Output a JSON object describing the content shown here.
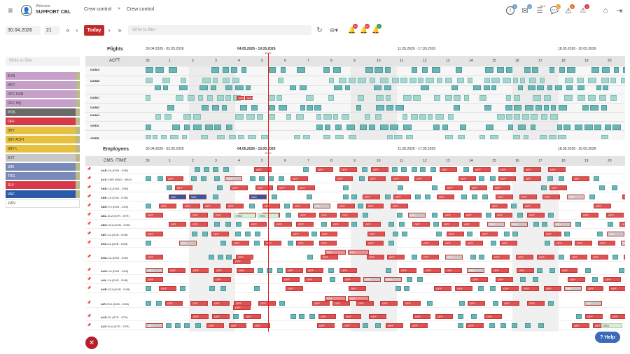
{
  "header": {
    "welcome": "Welcome",
    "user": "SUPPORT CBL",
    "nav": [
      "Crew control",
      ">",
      "Crew control"
    ],
    "badges": [
      "0",
      "0",
      "613",
      "0",
      "4",
      "3"
    ]
  },
  "toolbar": {
    "date": "30.04.2026",
    "days": "21",
    "today_label": "Today",
    "filter_placeholder": "Write to filter",
    "bell_badges": [
      "34",
      "34",
      "0"
    ]
  },
  "left_panel": {
    "filter_placeholder": "Write to filter",
    "items": [
      {
        "label": "EVN",
        "color": "#c6a0c8"
      },
      {
        "label": "HFC",
        "color": "#c6a0c8"
      },
      {
        "label": "OFC DXB",
        "color": "#c6a0c8"
      },
      {
        "label": "OFC HQ",
        "color": "#c6a0c8"
      },
      {
        "label": "POS",
        "color": "#6a6a6a"
      },
      {
        "label": "OFF",
        "color": "#d63a4a"
      },
      {
        "label": "SBY",
        "color": "#e8c040"
      },
      {
        "label": "SBY ACFT",
        "color": "#e8c040"
      },
      {
        "label": "SBY L",
        "color": "#e8c040"
      },
      {
        "label": "EXT",
        "color": "#c8c8c8"
      },
      {
        "label": "SIM",
        "color": "#7a8ab8"
      },
      {
        "label": "TRG",
        "color": "#7a8ab8"
      },
      {
        "label": "SLV",
        "color": "#d63a4a"
      },
      {
        "label": "VAC",
        "color": "#2a5aa8"
      },
      {
        "label": "RSV",
        "color": "#ffffff"
      }
    ]
  },
  "flights": {
    "title": "Flights",
    "col_header": "ACFT",
    "ranges": [
      "30.04.2026 - 03.05.2026",
      "04.05.2026 - 10.05.2026",
      "11.05.2026 - 17.05.2026",
      "18.05.2026 - 20.05.2026"
    ],
    "now_time": "10:37",
    "days": [
      "30",
      "1",
      "2",
      "3",
      "4",
      "5",
      "6",
      "7",
      "8",
      "9",
      "10",
      "11",
      "12",
      "13",
      "14",
      "15",
      "16",
      "17",
      "18",
      "19",
      "20"
    ],
    "aircraft": [
      "DAIMA",
      "DAIMB",
      "DAIMC",
      "DAIMD",
      "DAIMO",
      "OEIEA",
      "OEIEB"
    ],
    "wcd": [
      "WCD",
      "WCD"
    ]
  },
  "employees": {
    "title": "Employees",
    "col_header": "CMS. /TIME",
    "ranges": [
      "30.04.2026 - 03.05.2026",
      "04.05.2026 - 10.05.2026",
      "11.05.2026 - 17.05.2026",
      "18.05.2026 - 20.05.2026"
    ],
    "now_time": "10:37",
    "rows": [
      {
        "code": "AAR",
        "text": "-CA (DXB - DXB)"
      },
      {
        "code": "AAS",
        "text": "-CMD (MAD - MAD)"
      },
      {
        "code": "ABD",
        "text": "-CA (DXB - DXB)"
      },
      {
        "code": "ABE",
        "text": "-CA (DXB - DXB)"
      },
      {
        "code": "ABH",
        "text": "-FO (DXB - DXB)"
      },
      {
        "code": "ABL",
        "text": "-SCA (STR - STR)"
      },
      {
        "code": "ABO",
        "text": "-SCA (DXB - DXB)"
      },
      {
        "code": "ABT",
        "text": "-CA (DXB - DXB)"
      },
      {
        "code": "AFA",
        "text": "-CA (DXB - DXB)"
      },
      {
        "code": "AHA",
        "text": "-CA (DXB - DXB)"
      },
      {
        "code": "AHG",
        "text": "-CA (DXB - DXB)"
      },
      {
        "code": "AHL",
        "text": "-CA (DXB - DXB)"
      },
      {
        "code": "AHR",
        "text": "-SCA (DXB - DXB)"
      },
      {
        "code": "AIR",
        "text": "-SCA (DXB - DXB)"
      },
      {
        "code": "ALB",
        "text": "-FO (STR - STR)"
      },
      {
        "code": "ALE",
        "text": "-SCA (STR - STR)"
      }
    ],
    "labels": {
      "off": "OFF",
      "vac": "VAC",
      "sby": "SBY",
      "rsv": "RSV",
      "slv": "SLV"
    }
  },
  "help_label": "Help"
}
